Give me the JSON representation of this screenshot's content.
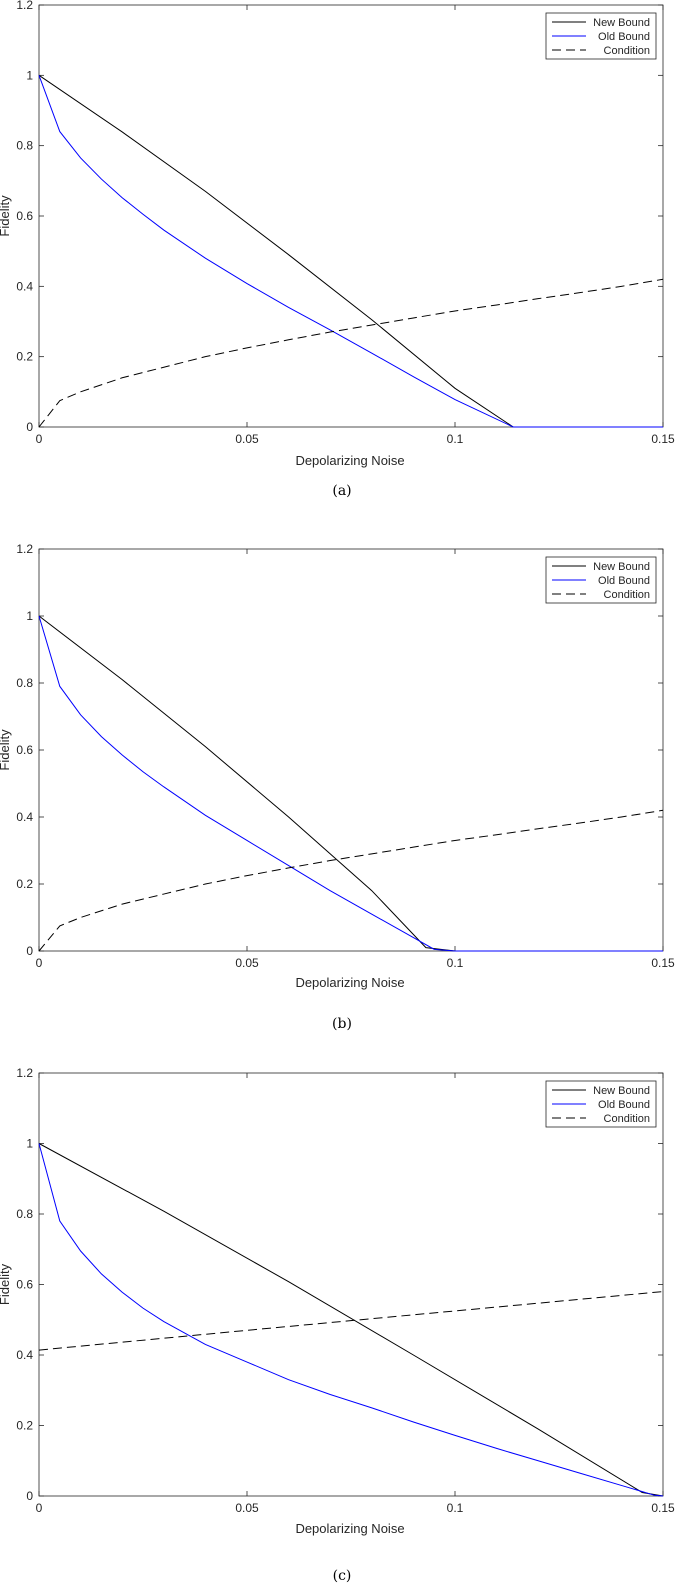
{
  "chart_data": [
    {
      "type": "line",
      "caption": "(a)",
      "xlabel": "Depolarizing Noise",
      "ylabel": "Fidelity",
      "xlim": [
        0,
        0.15
      ],
      "ylim": [
        0,
        1.2
      ],
      "xticks": [
        "0",
        "0.05",
        "0.1",
        "0.15"
      ],
      "yticks": [
        "0",
        "0.2",
        "0.4",
        "0.6",
        "0.8",
        "1",
        "1.2"
      ],
      "grid": false,
      "legend_position": "top-right",
      "series": [
        {
          "name": "New Bound",
          "color": "#000000",
          "style": "solid",
          "x": [
            0,
            0.02,
            0.04,
            0.06,
            0.08,
            0.1,
            0.114,
            0.12,
            0.15
          ],
          "y": [
            1.0,
            0.839,
            0.67,
            0.49,
            0.305,
            0.11,
            0.0,
            0.0,
            0.0
          ]
        },
        {
          "name": "Old Bound",
          "color": "#0000ff",
          "style": "solid",
          "x": [
            0,
            0.005,
            0.01,
            0.015,
            0.02,
            0.025,
            0.03,
            0.04,
            0.05,
            0.06,
            0.07,
            0.08,
            0.09,
            0.1,
            0.114,
            0.12,
            0.15
          ],
          "y": [
            1.0,
            0.84,
            0.765,
            0.705,
            0.652,
            0.605,
            0.56,
            0.48,
            0.408,
            0.34,
            0.276,
            0.21,
            0.143,
            0.078,
            0.0,
            0.0,
            0.0
          ]
        },
        {
          "name": "Condition",
          "color": "#000000",
          "style": "dashed",
          "x": [
            0,
            0.005,
            0.01,
            0.02,
            0.03,
            0.04,
            0.05,
            0.06,
            0.07,
            0.08,
            0.09,
            0.1,
            0.11,
            0.12,
            0.13,
            0.14,
            0.15
          ],
          "y": [
            0.0,
            0.075,
            0.1,
            0.14,
            0.17,
            0.2,
            0.225,
            0.248,
            0.27,
            0.29,
            0.31,
            0.33,
            0.347,
            0.365,
            0.382,
            0.4,
            0.42
          ]
        }
      ]
    },
    {
      "type": "line",
      "caption": "(b)",
      "xlabel": "Depolarizing Noise",
      "ylabel": "Fidelity",
      "xlim": [
        0,
        0.15
      ],
      "ylim": [
        0,
        1.2
      ],
      "xticks": [
        "0",
        "0.05",
        "0.1",
        "0.15"
      ],
      "yticks": [
        "0",
        "0.2",
        "0.4",
        "0.6",
        "0.8",
        "1",
        "1.2"
      ],
      "grid": false,
      "legend_position": "top-right",
      "series": [
        {
          "name": "New Bound",
          "color": "#000000",
          "style": "solid",
          "x": [
            0,
            0.02,
            0.04,
            0.06,
            0.08,
            0.093,
            0.1,
            0.15
          ],
          "y": [
            1.0,
            0.81,
            0.61,
            0.4,
            0.18,
            0.01,
            0.0,
            0.0
          ]
        },
        {
          "name": "Old Bound",
          "color": "#0000ff",
          "style": "solid",
          "x": [
            0,
            0.005,
            0.01,
            0.015,
            0.02,
            0.025,
            0.03,
            0.04,
            0.05,
            0.06,
            0.07,
            0.08,
            0.09,
            0.095,
            0.1,
            0.15
          ],
          "y": [
            1.0,
            0.79,
            0.705,
            0.64,
            0.585,
            0.535,
            0.49,
            0.405,
            0.33,
            0.255,
            0.18,
            0.11,
            0.04,
            0.005,
            0.0,
            0.0
          ]
        },
        {
          "name": "Condition",
          "color": "#000000",
          "style": "dashed",
          "x": [
            0,
            0.005,
            0.01,
            0.02,
            0.03,
            0.04,
            0.05,
            0.06,
            0.07,
            0.08,
            0.09,
            0.1,
            0.11,
            0.12,
            0.13,
            0.14,
            0.15
          ],
          "y": [
            0.0,
            0.075,
            0.1,
            0.14,
            0.17,
            0.2,
            0.225,
            0.248,
            0.27,
            0.29,
            0.31,
            0.33,
            0.347,
            0.365,
            0.382,
            0.4,
            0.42
          ]
        }
      ]
    },
    {
      "type": "line",
      "caption": "(c)",
      "xlabel": "Depolarizing Noise",
      "ylabel": "Fidelity",
      "xlim": [
        0,
        0.15
      ],
      "ylim": [
        0,
        1.2
      ],
      "xticks": [
        "0",
        "0.05",
        "0.1",
        "0.15"
      ],
      "yticks": [
        "0",
        "0.2",
        "0.4",
        "0.6",
        "0.8",
        "1",
        "1.2"
      ],
      "grid": false,
      "legend_position": "top-right",
      "series": [
        {
          "name": "New Bound",
          "color": "#000000",
          "style": "solid",
          "x": [
            0,
            0.03,
            0.06,
            0.09,
            0.12,
            0.145,
            0.15
          ],
          "y": [
            1.0,
            0.808,
            0.608,
            0.4,
            0.19,
            0.01,
            0.0
          ]
        },
        {
          "name": "Old Bound",
          "color": "#0000ff",
          "style": "solid",
          "x": [
            0,
            0.005,
            0.01,
            0.015,
            0.02,
            0.025,
            0.03,
            0.04,
            0.05,
            0.06,
            0.07,
            0.08,
            0.09,
            0.1,
            0.11,
            0.12,
            0.13,
            0.14,
            0.148,
            0.15
          ],
          "y": [
            1.0,
            0.78,
            0.695,
            0.63,
            0.578,
            0.533,
            0.495,
            0.43,
            0.38,
            0.33,
            0.288,
            0.25,
            0.21,
            0.172,
            0.135,
            0.1,
            0.065,
            0.03,
            0.002,
            0.0
          ]
        },
        {
          "name": "Condition",
          "color": "#000000",
          "style": "dashed",
          "x": [
            0,
            0.05,
            0.1,
            0.15
          ],
          "y": [
            0.414,
            0.47,
            0.525,
            0.58
          ]
        }
      ]
    }
  ]
}
